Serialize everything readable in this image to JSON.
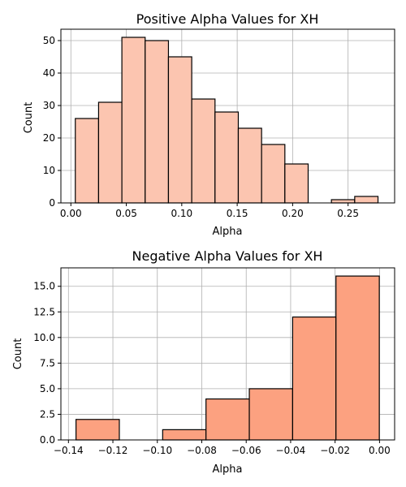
{
  "colors": {
    "positive_bar": "#fcc5b0",
    "negative_bar": "#fca180",
    "grid": "#b0b0b0",
    "edge": "#000000"
  },
  "chart_data": [
    {
      "type": "bar",
      "title": "Positive Alpha Values for XH",
      "xlabel": "Alpha",
      "ylabel": "Count",
      "xlim": [
        -0.009,
        0.292
      ],
      "ylim": [
        0,
        53.5
      ],
      "grid": true,
      "xticks": [
        0.0,
        0.05,
        0.1,
        0.15,
        0.2,
        0.25
      ],
      "xtick_labels": [
        "0.00",
        "0.05",
        "0.10",
        "0.15",
        "0.20",
        "0.25"
      ],
      "yticks": [
        0,
        10,
        20,
        30,
        40,
        50
      ],
      "ytick_labels": [
        "0",
        "10",
        "20",
        "30",
        "40",
        "50"
      ],
      "bins": [
        {
          "start": 0.004,
          "end": 0.025,
          "count": 26
        },
        {
          "start": 0.025,
          "end": 0.046,
          "count": 31
        },
        {
          "start": 0.046,
          "end": 0.067,
          "count": 51
        },
        {
          "start": 0.067,
          "end": 0.088,
          "count": 50
        },
        {
          "start": 0.088,
          "end": 0.109,
          "count": 45
        },
        {
          "start": 0.109,
          "end": 0.13,
          "count": 32
        },
        {
          "start": 0.13,
          "end": 0.151,
          "count": 28
        },
        {
          "start": 0.151,
          "end": 0.172,
          "count": 23
        },
        {
          "start": 0.172,
          "end": 0.193,
          "count": 18
        },
        {
          "start": 0.193,
          "end": 0.214,
          "count": 12
        },
        {
          "start": 0.214,
          "end": 0.235,
          "count": 0
        },
        {
          "start": 0.235,
          "end": 0.256,
          "count": 1
        },
        {
          "start": 0.256,
          "end": 0.277,
          "count": 2
        }
      ]
    },
    {
      "type": "bar",
      "title": "Negative Alpha Values for XH",
      "xlabel": "Alpha",
      "ylabel": "Count",
      "xlim": [
        -0.1434,
        0.0068
      ],
      "ylim": [
        0,
        16.8
      ],
      "grid": true,
      "xticks": [
        -0.14,
        -0.12,
        -0.1,
        -0.08,
        -0.06,
        -0.04,
        -0.02,
        0.0
      ],
      "xtick_labels": [
        "−0.14",
        "−0.12",
        "−0.10",
        "−0.08",
        "−0.06",
        "−0.04",
        "−0.02",
        "0.00"
      ],
      "yticks": [
        0,
        2.5,
        5,
        7.5,
        10,
        12.5,
        15
      ],
      "ytick_labels": [
        "0.0",
        "2.5",
        "5.0",
        "7.5",
        "10.0",
        "12.5",
        "15.0"
      ],
      "bins": [
        {
          "start": -0.1366,
          "end": -0.1171,
          "count": 2
        },
        {
          "start": -0.1171,
          "end": -0.0976,
          "count": 0
        },
        {
          "start": -0.0976,
          "end": -0.0781,
          "count": 1
        },
        {
          "start": -0.0781,
          "end": -0.0586,
          "count": 4
        },
        {
          "start": -0.0586,
          "end": -0.0391,
          "count": 5
        },
        {
          "start": -0.0391,
          "end": -0.0196,
          "count": 12
        },
        {
          "start": -0.0196,
          "end": -0.0001,
          "count": 16
        }
      ]
    }
  ]
}
